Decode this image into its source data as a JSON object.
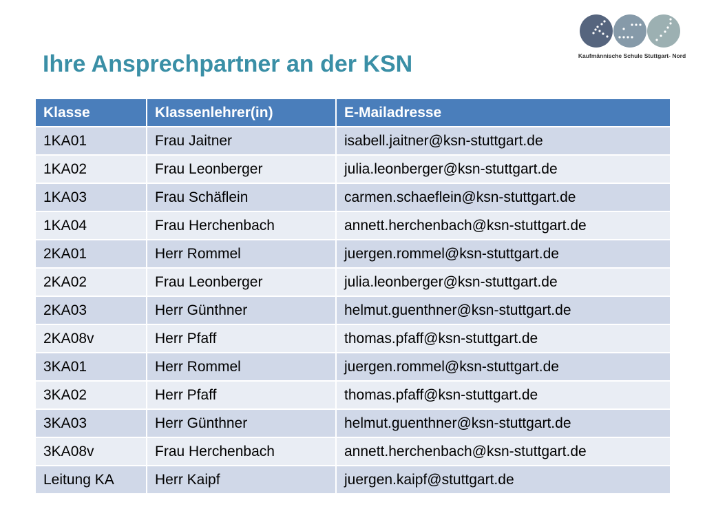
{
  "slide": {
    "title": "Ihre Ansprechpartner an der KSN"
  },
  "logo": {
    "caption": "Kaufmännische Schule Stuttgart- Nord",
    "colors": [
      "#56657e",
      "#869aa9",
      "#9cb0b2"
    ]
  },
  "colors": {
    "title": "#3a8fa6",
    "header_bg": "#4a7ebb",
    "row_dark": "#d0d8e8",
    "row_light": "#e9edf4"
  },
  "table": {
    "headers": [
      "Klasse",
      "Klassenlehrer(in)",
      "E-Mailadresse"
    ],
    "rows": [
      [
        "1KA01",
        "Frau Jaitner",
        "isabell.jaitner@ksn-stuttgart.de"
      ],
      [
        "1KA02",
        "Frau Leonberger",
        "julia.leonberger@ksn-stuttgart.de"
      ],
      [
        "1KA03",
        "Frau Schäflein",
        "carmen.schaeflein@ksn-stuttgart.de"
      ],
      [
        "1KA04",
        "Frau Herchenbach",
        "annett.herchenbach@ksn-stuttgart.de"
      ],
      [
        "2KA01",
        "Herr Rommel",
        "juergen.rommel@ksn-stuttgart.de"
      ],
      [
        "2KA02",
        "Frau Leonberger",
        "julia.leonberger@ksn-stuttgart.de"
      ],
      [
        "2KA03",
        "Herr Günthner",
        "helmut.guenthner@ksn-stuttgart.de"
      ],
      [
        "2KA08v",
        "Herr Pfaff",
        "thomas.pfaff@ksn-stuttgart.de"
      ],
      [
        "3KA01",
        "Herr Rommel",
        "juergen.rommel@ksn-stuttgart.de"
      ],
      [
        "3KA02",
        "Herr Pfaff",
        "thomas.pfaff@ksn-stuttgart.de"
      ],
      [
        "3KA03",
        "Herr Günthner",
        "helmut.guenthner@ksn-stuttgart.de"
      ],
      [
        "3KA08v",
        "Frau Herchenbach",
        "annett.herchenbach@ksn-stuttgart.de"
      ],
      [
        "Leitung KA",
        "Herr Kaipf",
        "juergen.kaipf@stuttgart.de"
      ]
    ]
  }
}
